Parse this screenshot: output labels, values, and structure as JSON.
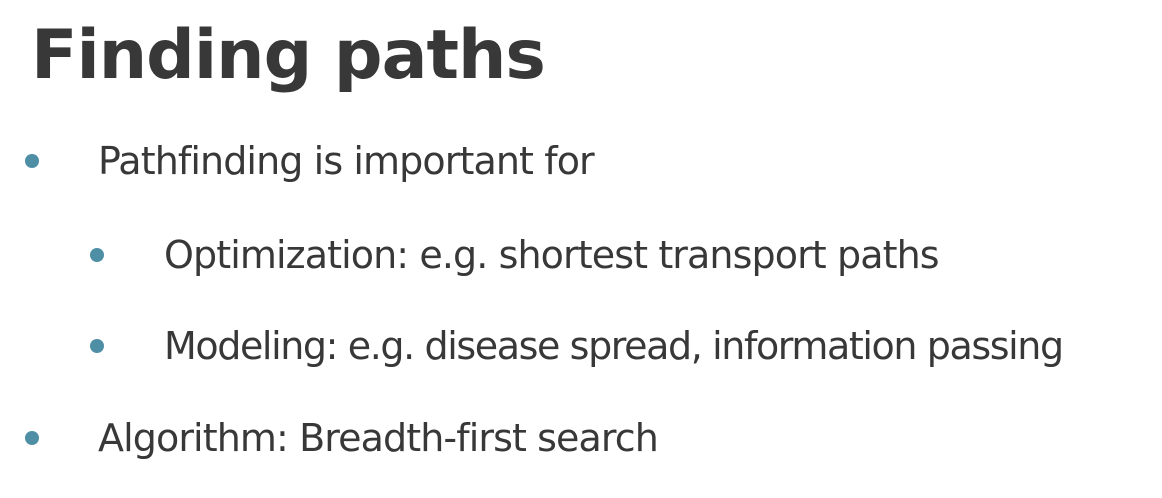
{
  "slide": {
    "title": "Finding paths",
    "bullet_color": "#4f8fa6",
    "text_color": "#383838",
    "bullets": [
      {
        "level": 1,
        "text": "Pathfinding is important for"
      },
      {
        "level": 2,
        "text": "Optimization: e.g. shortest transport paths"
      },
      {
        "level": 2,
        "text": "Modeling: e.g. disease spread, information passing"
      },
      {
        "level": 1,
        "text": "Algorithm: Breadth-first search"
      }
    ]
  }
}
